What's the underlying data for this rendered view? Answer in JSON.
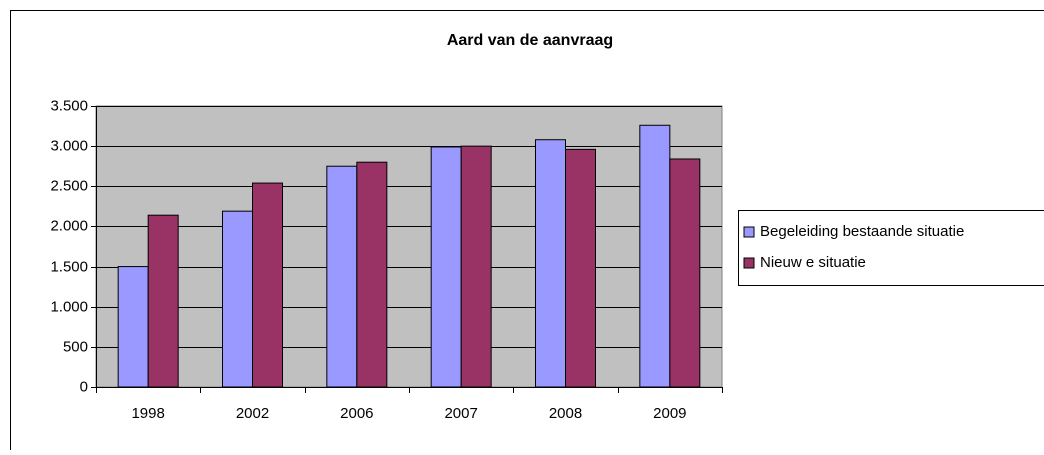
{
  "chart_data": {
    "type": "bar",
    "title": "Aard van de aanvraag",
    "categories": [
      "1998",
      "2002",
      "2006",
      "2007",
      "2008",
      "2009"
    ],
    "series": [
      {
        "name": "Begeleiding bestaande situatie",
        "color": "#9999ff",
        "values": [
          1500,
          2190,
          2750,
          2990,
          3080,
          3260
        ]
      },
      {
        "name": "Nieuw e situatie",
        "color": "#993366",
        "values": [
          2140,
          2540,
          2800,
          3000,
          2960,
          2840
        ]
      }
    ],
    "ylim": [
      0,
      3500
    ],
    "yticks": [
      0,
      500,
      {
        "value": 1000,
        "label": "1.000"
      },
      {
        "value": 1500,
        "label": "1.500"
      },
      {
        "value": 2000,
        "label": "2.000"
      },
      {
        "value": 2500,
        "label": "2.500"
      },
      {
        "value": 3000,
        "label": "3.000"
      },
      {
        "value": 3500,
        "label": "3.500"
      }
    ],
    "grid": true,
    "legend": "right"
  }
}
